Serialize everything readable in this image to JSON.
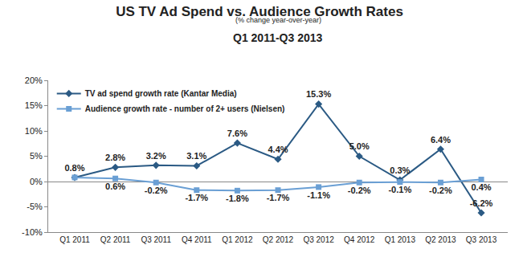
{
  "chart_data": {
    "type": "line",
    "title": "US TV Ad Spend vs. Audience Growth Rates",
    "subtitle": [
      "(% change year-over-year)",
      "Q1 2011-Q3 2013"
    ],
    "categories": [
      "Q1 2011",
      "Q2 2011",
      "Q3 2011",
      "Q4 2011",
      "Q1 2012",
      "Q2 2012",
      "Q3 2012",
      "Q4 2012",
      "Q1 2013",
      "Q2 2013",
      "Q3 2013"
    ],
    "series": [
      {
        "name": "TV ad spend growth rate (Kantar Media)",
        "color": "#2b5a84",
        "marker": "diamond",
        "line_style": "solid",
        "values": [
          0.8,
          2.8,
          3.2,
          3.1,
          7.6,
          4.4,
          15.3,
          5.0,
          0.3,
          6.4,
          -6.2
        ],
        "value_labels": [
          "0.8%",
          "2.8%",
          "3.2%",
          "3.1%",
          "7.6%",
          "4.4%",
          "15.3%",
          "5.0%",
          "0.3%",
          "6.4%",
          "-6.2%"
        ]
      },
      {
        "name": "Audience growth rate - number of 2+ users (Nielsen)",
        "color": "#6a9fd4",
        "marker": "square",
        "line_style": "solid",
        "values": [
          0.8,
          0.6,
          -0.2,
          -1.7,
          -1.8,
          -1.7,
          -1.1,
          -0.2,
          -0.1,
          -0.2,
          0.4
        ],
        "value_labels": [
          null,
          "0.6%",
          "-0.2%",
          "-1.7%",
          "-1.8%",
          "-1.7%",
          "-1.1%",
          "-0.2%",
          "-0.1%",
          "-0.2%",
          "0.4%"
        ]
      }
    ],
    "ylim": [
      -10,
      20
    ],
    "yticks": [
      {
        "value": -10,
        "label": "-10%"
      },
      {
        "value": -5,
        "label": "-5%"
      },
      {
        "value": 0,
        "label": "0%"
      },
      {
        "value": 5,
        "label": "5%"
      },
      {
        "value": 10,
        "label": "10%"
      },
      {
        "value": 15,
        "label": "15%"
      },
      {
        "value": 20,
        "label": "20%"
      }
    ],
    "grid": false,
    "legend": "upper left",
    "data_labels": true
  }
}
